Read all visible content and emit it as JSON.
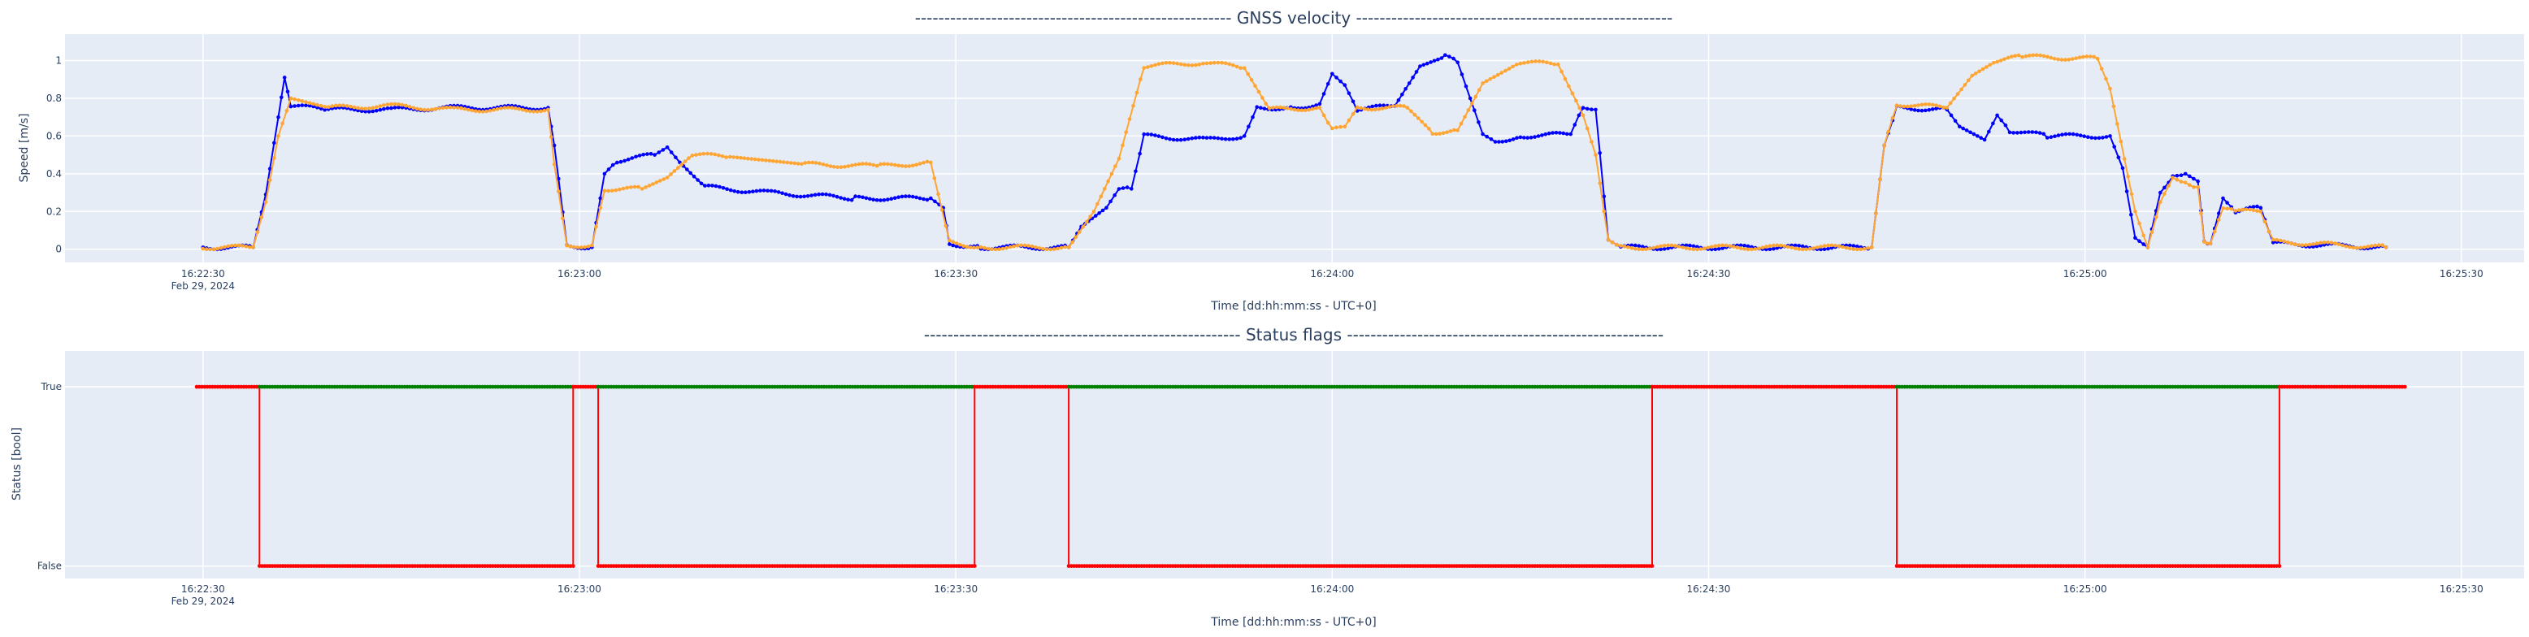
{
  "chart_data": [
    {
      "type": "line",
      "title": "------------------------------------------------------  GNSS velocity  ------------------------------------------------------",
      "xlabel": "Time [dd:hh:mm:ss - UTC+0]",
      "ylabel": "Speed [m/s]",
      "x_tick_labels": [
        "16:22:30",
        "16:23:00",
        "16:23:30",
        "16:24:00",
        "16:24:30",
        "16:25:00",
        "16:25:30"
      ],
      "x_date_label": "Feb 29, 2024",
      "y_tick_labels": [
        "0",
        "0.2",
        "0.4",
        "0.6",
        "0.8",
        "1"
      ],
      "y_ticks": [
        0,
        0.2,
        0.4,
        0.6,
        0.8,
        1
      ],
      "xlim": [
        "16:22:19",
        "16:25:35"
      ],
      "ylim": [
        -0.07,
        1.14
      ],
      "grid": true,
      "series": [
        {
          "color": "#0000ff",
          "points": [
            [
              "16:22:30",
              0.01
            ],
            [
              "16:22:34",
              0.01
            ],
            [
              "16:22:35",
              0.29
            ],
            [
              "16:22:36",
              0.7
            ],
            [
              "16:22:36.5",
              0.91
            ],
            [
              "16:22:37",
              0.76
            ],
            [
              "16:22:40",
              0.74
            ],
            [
              "16:22:45",
              0.74
            ],
            [
              "16:22:50",
              0.75
            ],
            [
              "16:22:57.5",
              0.75
            ],
            [
              "16:22:58",
              0.55
            ],
            [
              "16:22:59",
              0.02
            ],
            [
              "16:23:01",
              0.01
            ],
            [
              "16:23:02",
              0.4
            ],
            [
              "16:23:03",
              0.47
            ],
            [
              "16:23:06",
              0.5
            ],
            [
              "16:23:07",
              0.54
            ],
            [
              "16:23:08",
              0.46
            ],
            [
              "16:23:10",
              0.33
            ],
            [
              "16:23:15",
              0.3
            ],
            [
              "16:23:22",
              0.27
            ],
            [
              "16:23:28",
              0.27
            ],
            [
              "16:23:29",
              0.22
            ],
            [
              "16:23:29.5",
              0.03
            ],
            [
              "16:23:32",
              0.01
            ],
            [
              "16:23:39",
              0.01
            ],
            [
              "16:23:40",
              0.12
            ],
            [
              "16:23:42",
              0.22
            ],
            [
              "16:23:43",
              0.32
            ],
            [
              "16:23:44",
              0.32
            ],
            [
              "16:23:45",
              0.6
            ],
            [
              "16:23:50",
              0.58
            ],
            [
              "16:23:53",
              0.6
            ],
            [
              "16:23:54",
              0.75
            ],
            [
              "16:23:57",
              0.75
            ],
            [
              "16:23:59",
              0.77
            ],
            [
              "16:24:00",
              0.93
            ],
            [
              "16:24:01",
              0.87
            ],
            [
              "16:24:02",
              0.74
            ],
            [
              "16:24:05",
              0.76
            ],
            [
              "16:24:07",
              0.97
            ],
            [
              "16:24:09",
              1.02
            ],
            [
              "16:24:10",
              0.99
            ],
            [
              "16:24:11",
              0.8
            ],
            [
              "16:24:12",
              0.61
            ],
            [
              "16:24:13",
              0.57
            ],
            [
              "16:24:15",
              0.6
            ],
            [
              "16:24:19",
              0.61
            ],
            [
              "16:24:20",
              0.76
            ],
            [
              "16:24:21",
              0.74
            ],
            [
              "16:24:22",
              0.05
            ],
            [
              "16:24:23",
              0.01
            ],
            [
              "16:24:43",
              0.01
            ],
            [
              "16:24:44",
              0.55
            ],
            [
              "16:24:45",
              0.75
            ],
            [
              "16:24:49",
              0.74
            ],
            [
              "16:24:50",
              0.65
            ],
            [
              "16:24:52",
              0.58
            ],
            [
              "16:24:53",
              0.71
            ],
            [
              "16:24:54",
              0.63
            ],
            [
              "16:24:57",
              0.6
            ],
            [
              "16:25:02",
              0.6
            ],
            [
              "16:25:03",
              0.43
            ],
            [
              "16:25:04",
              0.06
            ],
            [
              "16:25:05",
              0.01
            ],
            [
              "16:25:06",
              0.3
            ],
            [
              "16:25:07",
              0.38
            ],
            [
              "16:25:08",
              0.4
            ],
            [
              "16:25:09",
              0.36
            ],
            [
              "16:25:09.5",
              0.05
            ],
            [
              "16:25:10",
              0.03
            ],
            [
              "16:25:11",
              0.27
            ],
            [
              "16:25:12",
              0.2
            ],
            [
              "16:25:14",
              0.22
            ],
            [
              "16:25:15",
              0.03
            ],
            [
              "16:25:24",
              0.01
            ]
          ]
        },
        {
          "color": "#ffa533",
          "points": [
            [
              "16:22:30",
              0.01
            ],
            [
              "16:22:34",
              0.01
            ],
            [
              "16:22:35",
              0.25
            ],
            [
              "16:22:36",
              0.6
            ],
            [
              "16:22:37",
              0.8
            ],
            [
              "16:22:40",
              0.75
            ],
            [
              "16:22:45",
              0.76
            ],
            [
              "16:22:50",
              0.74
            ],
            [
              "16:22:57.5",
              0.74
            ],
            [
              "16:22:58",
              0.45
            ],
            [
              "16:22:59",
              0.02
            ],
            [
              "16:23:01",
              0.02
            ],
            [
              "16:23:02",
              0.32
            ],
            [
              "16:23:05",
              0.32
            ],
            [
              "16:23:07",
              0.38
            ],
            [
              "16:23:09",
              0.5
            ],
            [
              "16:23:12",
              0.49
            ],
            [
              "16:23:18",
              0.45
            ],
            [
              "16:23:24",
              0.44
            ],
            [
              "16:23:28",
              0.46
            ],
            [
              "16:23:29.5",
              0.04
            ],
            [
              "16:23:32",
              0.01
            ],
            [
              "16:23:39",
              0.01
            ],
            [
              "16:23:41",
              0.2
            ],
            [
              "16:23:43",
              0.48
            ],
            [
              "16:23:45",
              0.97
            ],
            [
              "16:23:50",
              0.99
            ],
            [
              "16:23:53",
              0.96
            ],
            [
              "16:23:55",
              0.74
            ],
            [
              "16:23:59",
              0.75
            ],
            [
              "16:24:00",
              0.63
            ],
            [
              "16:24:01",
              0.65
            ],
            [
              "16:24:02",
              0.75
            ],
            [
              "16:24:06",
              0.75
            ],
            [
              "16:24:08",
              0.62
            ],
            [
              "16:24:10",
              0.63
            ],
            [
              "16:24:12",
              0.88
            ],
            [
              "16:24:15",
              0.99
            ],
            [
              "16:24:18",
              0.98
            ],
            [
              "16:24:20",
              0.71
            ],
            [
              "16:24:21",
              0.5
            ],
            [
              "16:24:22",
              0.05
            ],
            [
              "16:24:23",
              0.01
            ],
            [
              "16:24:43",
              0.01
            ],
            [
              "16:24:44",
              0.55
            ],
            [
              "16:24:45",
              0.77
            ],
            [
              "16:24:49",
              0.75
            ],
            [
              "16:24:51",
              0.92
            ],
            [
              "16:24:53",
              1.0
            ],
            [
              "16:24:55",
              1.02
            ],
            [
              "16:25:01",
              1.01
            ],
            [
              "16:25:02",
              0.85
            ],
            [
              "16:25:04",
              0.2
            ],
            [
              "16:25:05",
              0.01
            ],
            [
              "16:25:06",
              0.25
            ],
            [
              "16:25:07",
              0.38
            ],
            [
              "16:25:08",
              0.36
            ],
            [
              "16:25:09",
              0.33
            ],
            [
              "16:25:09.5",
              0.05
            ],
            [
              "16:25:10",
              0.03
            ],
            [
              "16:25:11",
              0.22
            ],
            [
              "16:25:12",
              0.2
            ],
            [
              "16:25:14",
              0.2
            ],
            [
              "16:25:15",
              0.04
            ],
            [
              "16:25:24",
              0.01
            ]
          ]
        }
      ]
    },
    {
      "type": "line",
      "title": "------------------------------------------------------  Status flags  ------------------------------------------------------",
      "xlabel": "Time [dd:hh:mm:ss - UTC+0]",
      "ylabel": "Status [bool]",
      "x_tick_labels": [
        "16:22:30",
        "16:23:00",
        "16:23:30",
        "16:24:00",
        "16:24:30",
        "16:25:00",
        "16:25:30"
      ],
      "x_date_label": "Feb 29, 2024",
      "y_tick_labels": [
        "False",
        "True"
      ],
      "y_ticks": [
        0,
        1
      ],
      "xlim": [
        "16:22:19",
        "16:25:35"
      ],
      "ylim": [
        -0.07,
        1.2
      ],
      "grid": true,
      "true_color": "#008000",
      "false_color": "#ff0000",
      "line_color": "#ff0000",
      "segments": [
        {
          "start": "16:22:29.5",
          "end": "16:22:34.5",
          "value": true
        },
        {
          "start": "16:22:34.5",
          "end": "16:22:59.5",
          "value": false
        },
        {
          "start": "16:22:59.5",
          "end": "16:23:01.5",
          "value": true
        },
        {
          "start": "16:23:01.5",
          "end": "16:23:31.5",
          "value": false
        },
        {
          "start": "16:23:31.5",
          "end": "16:23:39",
          "value": true
        },
        {
          "start": "16:23:39",
          "end": "16:24:25.5",
          "value": false
        },
        {
          "start": "16:24:25.5",
          "end": "16:24:45",
          "value": true
        },
        {
          "start": "16:24:45",
          "end": "16:25:15.5",
          "value": false
        },
        {
          "start": "16:25:15.5",
          "end": "16:25:25.5",
          "value": true
        }
      ],
      "marker_on_true": "#008000",
      "note_marker_rule": "markers on the True line are green where status is False; red where status is True"
    }
  ]
}
